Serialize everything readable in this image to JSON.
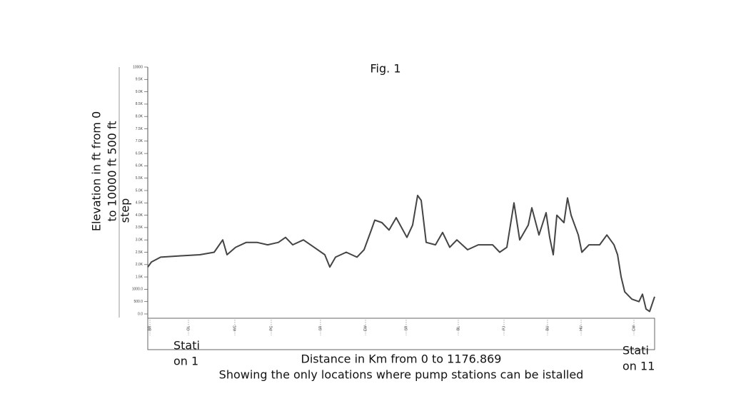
{
  "chart_data": {
    "type": "line",
    "title": "Fig. 1",
    "y_label_lines": [
      "Elevation in ft from 0",
      "to 10000 ft 500 ft",
      "step"
    ],
    "x_label": "Distance in Km from 0 to 1176.869",
    "subtitle": "Showing the only locations where pump stations can be istalled",
    "start_label_lines": [
      "Stati",
      "on 1"
    ],
    "end_label_lines": [
      "Stati",
      "on 11"
    ],
    "color": "#444444",
    "x": [
      0,
      8.3,
      29.8,
      71.3,
      121.0,
      154.1,
      174.0,
      184.0,
      203.9,
      228.7,
      253.6,
      278.5,
      303.3,
      319.9,
      336.5,
      361.3,
      386.2,
      411.1,
      422.7,
      436.0,
      460.8,
      485.7,
      502.3,
      518.9,
      527.1,
      543.7,
      560.2,
      576.8,
      601.7,
      614.9,
      626.5,
      634.8,
      646.4,
      668.0,
      684.5,
      701.1,
      717.7,
      742.6,
      767.4,
      800.6,
      817.1,
      833.7,
      850.3,
      863.6,
      883.4,
      891.7,
      908.3,
      924.9,
      933.2,
      941.5,
      949.8,
      966.4,
      974.7,
      983.0,
      999.6,
      1007.9,
      1024.5,
      1049.3,
      1065.9,
      1082.5,
      1090.8,
      1099.1,
      1107.4,
      1124.0,
      1140.5,
      1148.7,
      1157.0,
      1165.3,
      1176.869
    ],
    "values": [
      1900,
      2100,
      2300,
      2350,
      2400,
      2500,
      3000,
      2400,
      2700,
      2900,
      2900,
      2800,
      2900,
      3100,
      2800,
      3000,
      2700,
      2400,
      1900,
      2300,
      2500,
      2300,
      2600,
      3400,
      3800,
      3700,
      3400,
      3900,
      3100,
      3600,
      4800,
      4600,
      2900,
      2800,
      3300,
      2700,
      3000,
      2600,
      2800,
      2800,
      2500,
      2700,
      4500,
      3000,
      3600,
      4300,
      3200,
      4100,
      3100,
      2400,
      4000,
      3700,
      4700,
      4000,
      3200,
      2500,
      2800,
      2800,
      3200,
      2800,
      2400,
      1500,
      900,
      600,
      500,
      800,
      200,
      100,
      700
    ],
    "xlim": [
      0,
      1176.869
    ],
    "ylim": [
      0,
      10000
    ],
    "yticks": [
      {
        "value": 0,
        "label": "0.0"
      },
      {
        "value": 500,
        "label": "500.0"
      },
      {
        "value": 1000,
        "label": "1000.0"
      },
      {
        "value": 1500,
        "label": "1.5K"
      },
      {
        "value": 2000,
        "label": "2.0K"
      },
      {
        "value": 2500,
        "label": "2.5K"
      },
      {
        "value": 3000,
        "label": "3.0K"
      },
      {
        "value": 3500,
        "label": "3.5K"
      },
      {
        "value": 4000,
        "label": "4.0K"
      },
      {
        "value": 4500,
        "label": "4.5K"
      },
      {
        "value": 5000,
        "label": "5.0K"
      },
      {
        "value": 5500,
        "label": "5.5K"
      },
      {
        "value": 6000,
        "label": "6.0K"
      },
      {
        "value": 6500,
        "label": "6.5K"
      },
      {
        "value": 7000,
        "label": "7.0K"
      },
      {
        "value": 7500,
        "label": "7.5K"
      },
      {
        "value": 8000,
        "label": "8.0K"
      },
      {
        "value": 8500,
        "label": "8.5K"
      },
      {
        "value": 9000,
        "label": "9.0K"
      },
      {
        "value": 9500,
        "label": "9.5K"
      },
      10000
    ],
    "xticks": [
      {
        "value": 5,
        "label": "BR"
      },
      {
        "value": 94.5,
        "label": "OL"
      },
      {
        "value": 202.2,
        "label": "WC"
      },
      {
        "value": 286.7,
        "label": "PC"
      },
      {
        "value": 401.1,
        "label": "SR"
      },
      {
        "value": 505.6,
        "label": "EW"
      },
      {
        "value": 600.0,
        "label": "SR"
      },
      {
        "value": 721.0,
        "label": "BL"
      },
      {
        "value": 827.1,
        "label": "PJ"
      },
      {
        "value": 928.2,
        "label": "BU"
      },
      {
        "value": 1006.2,
        "label": "HU"
      },
      {
        "value": 1128.8,
        "label": "CW"
      }
    ]
  }
}
